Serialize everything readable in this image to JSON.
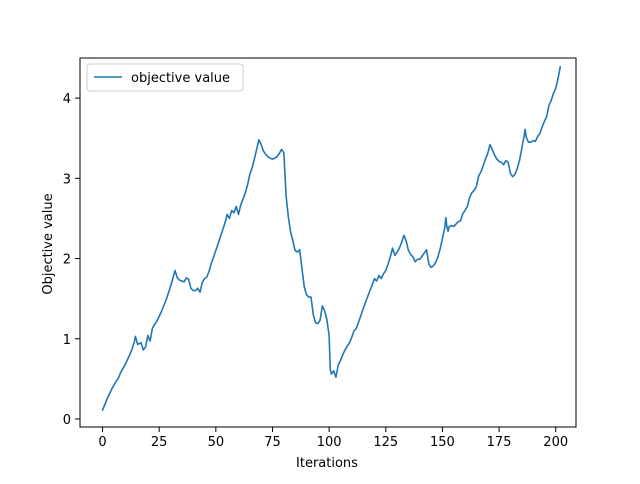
{
  "chart_data": {
    "type": "line",
    "title": "",
    "xlabel": "Iterations",
    "ylabel": "Objective value",
    "xlim": [
      -9.95,
      208.95
    ],
    "ylim": [
      -0.1,
      4.5
    ],
    "xticks": [
      0,
      25,
      50,
      75,
      100,
      125,
      150,
      175,
      200
    ],
    "yticks": [
      0,
      1,
      2,
      3,
      4
    ],
    "grid": false,
    "legend": {
      "position": "upper-left",
      "entries": [
        "objective value"
      ]
    },
    "series": [
      {
        "name": "objective value",
        "color": "#1f77b4",
        "points": [
          [
            0,
            0.11
          ],
          [
            2,
            0.25
          ],
          [
            4,
            0.37
          ],
          [
            6,
            0.47
          ],
          [
            7,
            0.51
          ],
          [
            8,
            0.58
          ],
          [
            10,
            0.68
          ],
          [
            12,
            0.8
          ],
          [
            13,
            0.87
          ],
          [
            14,
            0.96
          ],
          [
            14.5,
            1.03
          ],
          [
            15.5,
            0.93
          ],
          [
            17,
            0.95
          ],
          [
            18,
            0.86
          ],
          [
            19,
            0.9
          ],
          [
            20,
            1.04
          ],
          [
            21,
            0.97
          ],
          [
            22,
            1.13
          ],
          [
            23,
            1.18
          ],
          [
            24,
            1.22
          ],
          [
            26,
            1.34
          ],
          [
            28,
            1.48
          ],
          [
            30,
            1.65
          ],
          [
            31,
            1.75
          ],
          [
            32,
            1.85
          ],
          [
            33,
            1.76
          ],
          [
            34,
            1.73
          ],
          [
            35,
            1.72
          ],
          [
            36,
            1.71
          ],
          [
            37,
            1.76
          ],
          [
            38,
            1.74
          ],
          [
            39,
            1.63
          ],
          [
            40,
            1.6
          ],
          [
            41,
            1.6
          ],
          [
            42,
            1.63
          ],
          [
            43,
            1.58
          ],
          [
            44,
            1.7
          ],
          [
            45,
            1.75
          ],
          [
            46,
            1.77
          ],
          [
            47,
            1.84
          ],
          [
            48,
            1.94
          ],
          [
            50,
            2.1
          ],
          [
            52,
            2.27
          ],
          [
            54,
            2.44
          ],
          [
            55,
            2.55
          ],
          [
            56,
            2.5
          ],
          [
            57,
            2.6
          ],
          [
            58,
            2.57
          ],
          [
            59,
            2.65
          ],
          [
            60,
            2.55
          ],
          [
            61,
            2.67
          ],
          [
            62,
            2.74
          ],
          [
            63,
            2.82
          ],
          [
            64,
            2.92
          ],
          [
            65,
            3.05
          ],
          [
            66,
            3.13
          ],
          [
            67,
            3.24
          ],
          [
            68,
            3.36
          ],
          [
            69,
            3.48
          ],
          [
            70,
            3.42
          ],
          [
            71,
            3.34
          ],
          [
            72,
            3.3
          ],
          [
            73,
            3.27
          ],
          [
            74,
            3.25
          ],
          [
            75,
            3.24
          ],
          [
            76,
            3.25
          ],
          [
            77,
            3.27
          ],
          [
            78,
            3.31
          ],
          [
            79,
            3.36
          ],
          [
            80,
            3.32
          ],
          [
            81,
            2.78
          ],
          [
            82,
            2.52
          ],
          [
            83,
            2.33
          ],
          [
            84,
            2.22
          ],
          [
            85,
            2.1
          ],
          [
            86,
            2.08
          ],
          [
            87,
            2.11
          ],
          [
            88,
            1.88
          ],
          [
            89,
            1.65
          ],
          [
            90,
            1.55
          ],
          [
            91,
            1.52
          ],
          [
            92,
            1.52
          ],
          [
            93,
            1.3
          ],
          [
            94,
            1.2
          ],
          [
            95,
            1.19
          ],
          [
            96,
            1.23
          ],
          [
            97,
            1.41
          ],
          [
            98,
            1.35
          ],
          [
            99,
            1.24
          ],
          [
            100,
            1.04
          ],
          [
            100.5,
            0.62
          ],
          [
            101,
            0.56
          ],
          [
            102,
            0.6
          ],
          [
            103,
            0.52
          ],
          [
            104,
            0.67
          ],
          [
            105,
            0.73
          ],
          [
            106,
            0.8
          ],
          [
            107,
            0.86
          ],
          [
            108,
            0.91
          ],
          [
            109,
            0.95
          ],
          [
            110,
            1.02
          ],
          [
            111,
            1.1
          ],
          [
            112,
            1.13
          ],
          [
            114,
            1.29
          ],
          [
            116,
            1.45
          ],
          [
            118,
            1.6
          ],
          [
            119,
            1.67
          ],
          [
            120,
            1.75
          ],
          [
            121,
            1.72
          ],
          [
            122,
            1.79
          ],
          [
            123,
            1.75
          ],
          [
            124,
            1.81
          ],
          [
            125,
            1.85
          ],
          [
            126,
            1.93
          ],
          [
            127,
            2.02
          ],
          [
            128,
            2.13
          ],
          [
            129,
            2.04
          ],
          [
            130,
            2.08
          ],
          [
            131,
            2.13
          ],
          [
            132,
            2.2
          ],
          [
            133,
            2.29
          ],
          [
            134,
            2.22
          ],
          [
            135,
            2.1
          ],
          [
            136,
            2.05
          ],
          [
            137,
            2.02
          ],
          [
            138,
            1.96
          ],
          [
            139,
            1.99
          ],
          [
            140,
            1.99
          ],
          [
            141,
            2.03
          ],
          [
            142,
            2.07
          ],
          [
            143,
            2.11
          ],
          [
            144,
            1.93
          ],
          [
            145,
            1.89
          ],
          [
            146,
            1.91
          ],
          [
            147,
            1.95
          ],
          [
            148,
            2.02
          ],
          [
            149,
            2.12
          ],
          [
            150,
            2.25
          ],
          [
            151,
            2.38
          ],
          [
            151.5,
            2.51
          ],
          [
            152,
            2.39
          ],
          [
            152.5,
            2.34
          ],
          [
            153,
            2.4
          ],
          [
            154,
            2.41
          ],
          [
            155,
            2.4
          ],
          [
            156,
            2.43
          ],
          [
            157,
            2.46
          ],
          [
            158,
            2.47
          ],
          [
            159,
            2.56
          ],
          [
            160,
            2.6
          ],
          [
            161,
            2.65
          ],
          [
            162,
            2.76
          ],
          [
            163,
            2.82
          ],
          [
            164,
            2.85
          ],
          [
            165,
            2.9
          ],
          [
            166,
            3.03
          ],
          [
            167,
            3.08
          ],
          [
            168,
            3.16
          ],
          [
            169,
            3.24
          ],
          [
            170,
            3.31
          ],
          [
            171,
            3.42
          ],
          [
            172,
            3.36
          ],
          [
            173,
            3.29
          ],
          [
            174,
            3.24
          ],
          [
            175,
            3.21
          ],
          [
            176,
            3.2
          ],
          [
            177,
            3.17
          ],
          [
            178,
            3.22
          ],
          [
            179,
            3.2
          ],
          [
            180,
            3.06
          ],
          [
            181,
            3.02
          ],
          [
            182,
            3.05
          ],
          [
            183,
            3.12
          ],
          [
            184,
            3.22
          ],
          [
            185,
            3.37
          ],
          [
            186,
            3.52
          ],
          [
            186.5,
            3.61
          ],
          [
            187,
            3.51
          ],
          [
            188,
            3.45
          ],
          [
            189,
            3.45
          ],
          [
            190,
            3.47
          ],
          [
            191,
            3.46
          ],
          [
            192,
            3.52
          ],
          [
            193,
            3.56
          ],
          [
            194,
            3.64
          ],
          [
            195,
            3.71
          ],
          [
            196,
            3.77
          ],
          [
            197,
            3.91
          ],
          [
            198,
            3.97
          ],
          [
            199,
            4.06
          ],
          [
            200,
            4.12
          ],
          [
            201,
            4.24
          ],
          [
            202,
            4.39
          ]
        ]
      }
    ]
  }
}
